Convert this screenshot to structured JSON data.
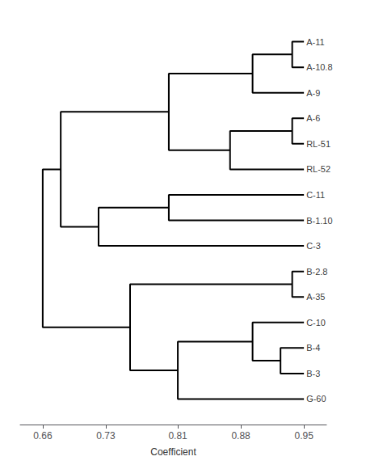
{
  "chart_data": {
    "type": "dendrogram",
    "xlabel": "Coefficient",
    "xlim": [
      0.635,
      0.975
    ],
    "xticks": [
      0.66,
      0.73,
      0.81,
      0.88,
      0.95
    ],
    "grid": false,
    "color": "#000000",
    "tree": {
      "value": 0.66,
      "children": [
        {
          "value": 0.68,
          "children": [
            {
              "value": 0.8,
              "children": [
                {
                  "value": 0.893,
                  "children": [
                    {
                      "value": 0.937,
                      "children": [
                        {
                          "name": "A-11",
                          "value": 0.95
                        },
                        {
                          "name": "A-10.8",
                          "value": 0.95
                        }
                      ]
                    },
                    {
                      "name": "A-9",
                      "value": 0.95
                    }
                  ]
                },
                {
                  "value": 0.868,
                  "children": [
                    {
                      "value": 0.937,
                      "children": [
                        {
                          "name": "A-6",
                          "value": 0.95
                        },
                        {
                          "name": "RL-51",
                          "value": 0.95
                        }
                      ]
                    },
                    {
                      "name": "RL-52",
                      "value": 0.95
                    }
                  ]
                }
              ]
            },
            {
              "value": 0.722,
              "children": [
                {
                  "value": 0.8,
                  "children": [
                    {
                      "name": "C-11",
                      "value": 0.95
                    },
                    {
                      "name": "B-1.10",
                      "value": 0.95
                    }
                  ]
                },
                {
                  "name": "C-3",
                  "value": 0.95
                }
              ]
            }
          ]
        },
        {
          "value": 0.757,
          "children": [
            {
              "value": 0.937,
              "children": [
                {
                  "name": "B-2.8",
                  "value": 0.95
                },
                {
                  "name": "A-35",
                  "value": 0.95
                }
              ]
            },
            {
              "value": 0.81,
              "children": [
                {
                  "value": 0.893,
                  "children": [
                    {
                      "name": "C-10",
                      "value": 0.95
                    },
                    {
                      "value": 0.924,
                      "children": [
                        {
                          "name": "B-4",
                          "value": 0.95
                        },
                        {
                          "name": "B-3",
                          "value": 0.95
                        }
                      ]
                    }
                  ]
                },
                {
                  "name": "G-60",
                  "value": 0.95
                }
              ]
            }
          ]
        }
      ]
    }
  }
}
